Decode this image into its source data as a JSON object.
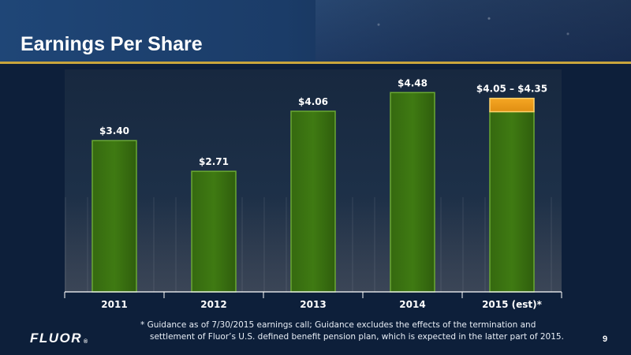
{
  "header": {
    "title": "Earnings Per Share"
  },
  "chart_data": {
    "type": "bar",
    "categories": [
      "2011",
      "2012",
      "2013",
      "2014",
      "2015 (est)*"
    ],
    "values": [
      3.4,
      2.71,
      4.06,
      4.48,
      4.05
    ],
    "range_top": {
      "category": "2015 (est)*",
      "low": 4.05,
      "high": 4.35
    },
    "data_labels": [
      "$3.40",
      "$2.71",
      "$4.06",
      "$4.48",
      "$4.05 – $4.35"
    ],
    "ylim": [
      0,
      5.0
    ],
    "grid": false,
    "title": "",
    "xlabel": "",
    "ylabel": "",
    "colors": {
      "bar": "#3f7a12",
      "bar_edge": "#6aa832",
      "range": "#f5a623",
      "range_edge": "#ffd36b"
    }
  },
  "footer": {
    "note_line1": "* Guidance as of 7/30/2015 earnings call; Guidance excludes the effects of the termination and",
    "note_line2": "settlement of Fluor’s U.S. defined benefit pension plan, which is expected in the latter part of 2015.",
    "logo": "FLUOR",
    "logo_mark": "®",
    "page_number": "9"
  }
}
